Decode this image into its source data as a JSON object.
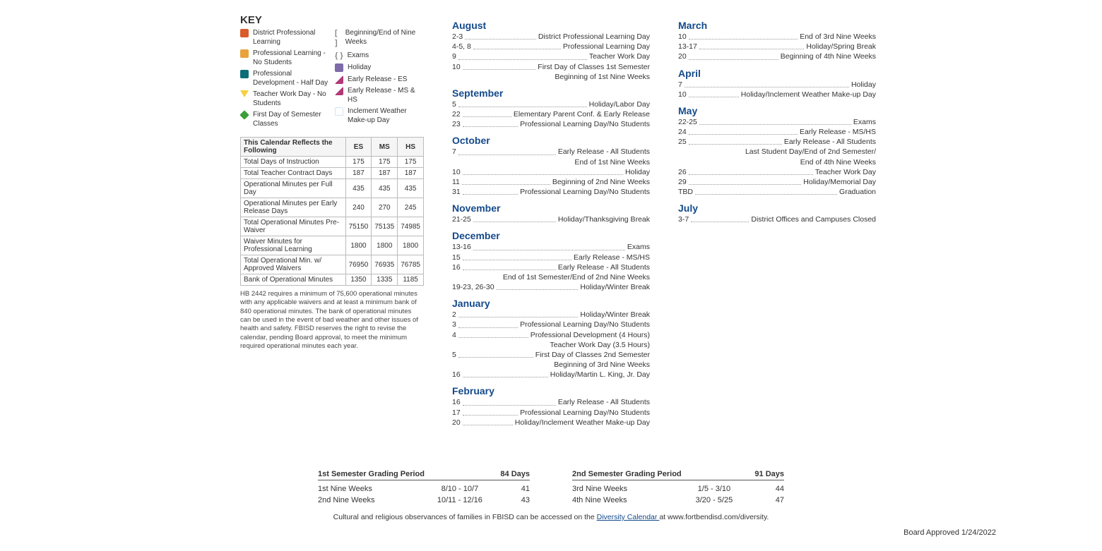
{
  "key": {
    "title": "KEY",
    "col1": [
      {
        "swatch": "#d95b2b",
        "label": "District Professional Learning"
      },
      {
        "swatch": "#e8a33d",
        "label": "Professional Learning - No Students"
      },
      {
        "swatch": "#0e6e77",
        "label": "Professional Development - Half Day"
      },
      {
        "swatch": "#f4d23c",
        "shape": "tri-down",
        "label": "Teacher Work Day - No Students"
      },
      {
        "swatch": "#3b9e3b",
        "shape": "diamond",
        "label": "First Day of Semester Classes"
      }
    ],
    "col2": [
      {
        "shape": "bracket",
        "label": "Beginning/End of Nine Weeks"
      },
      {
        "shape": "curly",
        "label": "Exams"
      },
      {
        "swatch": "#7d6aa8",
        "label": "Holiday"
      },
      {
        "swatch": "#b03a77",
        "shape": "flag",
        "label": "Early Release - ES"
      },
      {
        "swatch": "#b03a77",
        "shape": "flag",
        "label": "Early Release - MS & HS"
      },
      {
        "swatch": "#a9c7e8",
        "shape": "dotted",
        "label": "Inclement Weather Make-up Day"
      }
    ]
  },
  "stats": {
    "header": "This Calendar Reflects the Following",
    "cols": [
      "ES",
      "MS",
      "HS"
    ],
    "rows": [
      {
        "label": "Total Days of Instruction",
        "vals": [
          "175",
          "175",
          "175"
        ]
      },
      {
        "label": "Total Teacher Contract Days",
        "vals": [
          "187",
          "187",
          "187"
        ]
      },
      {
        "label": "Operational Minutes per Full Day",
        "vals": [
          "435",
          "435",
          "435"
        ]
      },
      {
        "label": "Operational Minutes per Early Release Days",
        "vals": [
          "240",
          "270",
          "245"
        ]
      },
      {
        "label": "Total Operational Minutes Pre-Waiver",
        "vals": [
          "75150",
          "75135",
          "74985"
        ]
      },
      {
        "label": "Waiver Minutes for Professional Learning",
        "vals": [
          "1800",
          "1800",
          "1800"
        ]
      },
      {
        "label": "Total Operational Min. w/ Approved Waivers",
        "vals": [
          "76950",
          "76935",
          "76785"
        ]
      },
      {
        "label": "Bank of Operational Minutes",
        "vals": [
          "1350",
          "1335",
          "1185"
        ]
      }
    ],
    "footnote": "HB 2442 requires a minimum of 75,600 operational minutes with any applicable waivers and at least a minimum bank of 840 operational minutes. The bank of operational minutes can be used in the event of bad weather and other issues of health and safety. FBISD reserves the right to revise the calendar, pending Board approval, to meet the minimum required operational minutes each year."
  },
  "months_mid": [
    {
      "name": "August",
      "rows": [
        {
          "d": "2-3",
          "desc": "District Professional Learning Day"
        },
        {
          "d": "4-5, 8",
          "desc": "Professional Learning Day"
        },
        {
          "d": "9",
          "desc": "Teacher Work Day"
        },
        {
          "d": "10",
          "desc": "First Day of Classes 1st Semester"
        },
        {
          "cont": "Beginning of 1st Nine Weeks"
        }
      ]
    },
    {
      "name": "September",
      "rows": [
        {
          "d": "5",
          "desc": "Holiday/Labor Day"
        },
        {
          "d": "22",
          "desc": "Elementary Parent Conf. & Early Release"
        },
        {
          "d": "23",
          "desc": "Professional Learning Day/No Students"
        }
      ]
    },
    {
      "name": "October",
      "rows": [
        {
          "d": "7",
          "desc": "Early Release - All Students"
        },
        {
          "cont": "End of 1st Nine Weeks"
        },
        {
          "d": "10",
          "desc": "Holiday"
        },
        {
          "d": "11",
          "desc": "Beginning of 2nd Nine Weeks"
        },
        {
          "d": "31",
          "desc": "Professional Learning Day/No Students"
        }
      ]
    },
    {
      "name": "November",
      "rows": [
        {
          "d": "21-25",
          "desc": "Holiday/Thanksgiving Break"
        }
      ]
    },
    {
      "name": "December",
      "rows": [
        {
          "d": "13-16",
          "desc": "Exams"
        },
        {
          "d": "15",
          "desc": "Early Release - MS/HS"
        },
        {
          "d": "16",
          "desc": "Early Release - All Students"
        },
        {
          "cont": "End of 1st Semester/End of 2nd Nine Weeks"
        },
        {
          "d": "19-23, 26-30",
          "desc": "Holiday/Winter Break"
        }
      ]
    },
    {
      "name": "January",
      "rows": [
        {
          "d": "2",
          "desc": "Holiday/Winter Break"
        },
        {
          "d": "3",
          "desc": "Professional Learning Day/No Students"
        },
        {
          "d": "4",
          "desc": "Professional Development (4 Hours)"
        },
        {
          "cont": "Teacher Work Day (3.5 Hours)"
        },
        {
          "d": "5",
          "desc": "First Day of Classes 2nd Semester"
        },
        {
          "cont": "Beginning of 3rd Nine Weeks"
        },
        {
          "d": "16",
          "desc": "Holiday/Martin L. King, Jr. Day"
        }
      ]
    },
    {
      "name": "February",
      "rows": [
        {
          "d": "16",
          "desc": "Early Release - All Students"
        },
        {
          "d": "17",
          "desc": "Professional Learning Day/No Students"
        },
        {
          "d": "20",
          "desc": "Holiday/Inclement Weather Make-up Day"
        }
      ]
    }
  ],
  "months_right": [
    {
      "name": "March",
      "rows": [
        {
          "d": "10",
          "desc": "End of 3rd Nine Weeks"
        },
        {
          "d": "13-17",
          "desc": "Holiday/Spring Break"
        },
        {
          "d": "20",
          "desc": "Beginning of 4th Nine Weeks"
        }
      ]
    },
    {
      "name": "April",
      "rows": [
        {
          "d": "7",
          "desc": "Holiday"
        },
        {
          "d": "10",
          "desc": "Holiday/Inclement Weather Make-up Day"
        }
      ]
    },
    {
      "name": "May",
      "rows": [
        {
          "d": "22-25",
          "desc": "Exams"
        },
        {
          "d": "24",
          "desc": "Early Release - MS/HS"
        },
        {
          "d": "25",
          "desc": "Early Release - All Students"
        },
        {
          "cont": "Last Student Day/End of 2nd Semester/"
        },
        {
          "cont": "End of 4th Nine Weeks"
        },
        {
          "d": "26",
          "desc": "Teacher Work Day"
        },
        {
          "d": "29",
          "desc": "Holiday/Memorial Day"
        },
        {
          "d": "TBD",
          "desc": "Graduation"
        }
      ]
    },
    {
      "name": "July",
      "rows": [
        {
          "d": "3-7",
          "desc": "District Offices and Campuses Closed"
        }
      ]
    }
  ],
  "grading": {
    "left": {
      "title": "1st Semester Grading Period",
      "days": "84 Days",
      "rows": [
        {
          "n": "1st Nine Weeks",
          "r": "8/10 - 10/7",
          "c": "41"
        },
        {
          "n": "2nd Nine Weeks",
          "r": "10/11 - 12/16",
          "c": "43"
        }
      ]
    },
    "right": {
      "title": "2nd Semester Grading Period",
      "days": "91 Days",
      "rows": [
        {
          "n": "3rd Nine Weeks",
          "r": "1/5 - 3/10",
          "c": "44"
        },
        {
          "n": "4th Nine Weeks",
          "r": "3/20 - 5/25",
          "c": "47"
        }
      ]
    }
  },
  "diversity_prefix": "Cultural and religious observances of families in FBISD can be accessed on the ",
  "diversity_link": "Diversity Calendar ",
  "diversity_suffix": "at www.fortbendisd.com/diversity.",
  "approved": "Board Approved   1/24/2022"
}
